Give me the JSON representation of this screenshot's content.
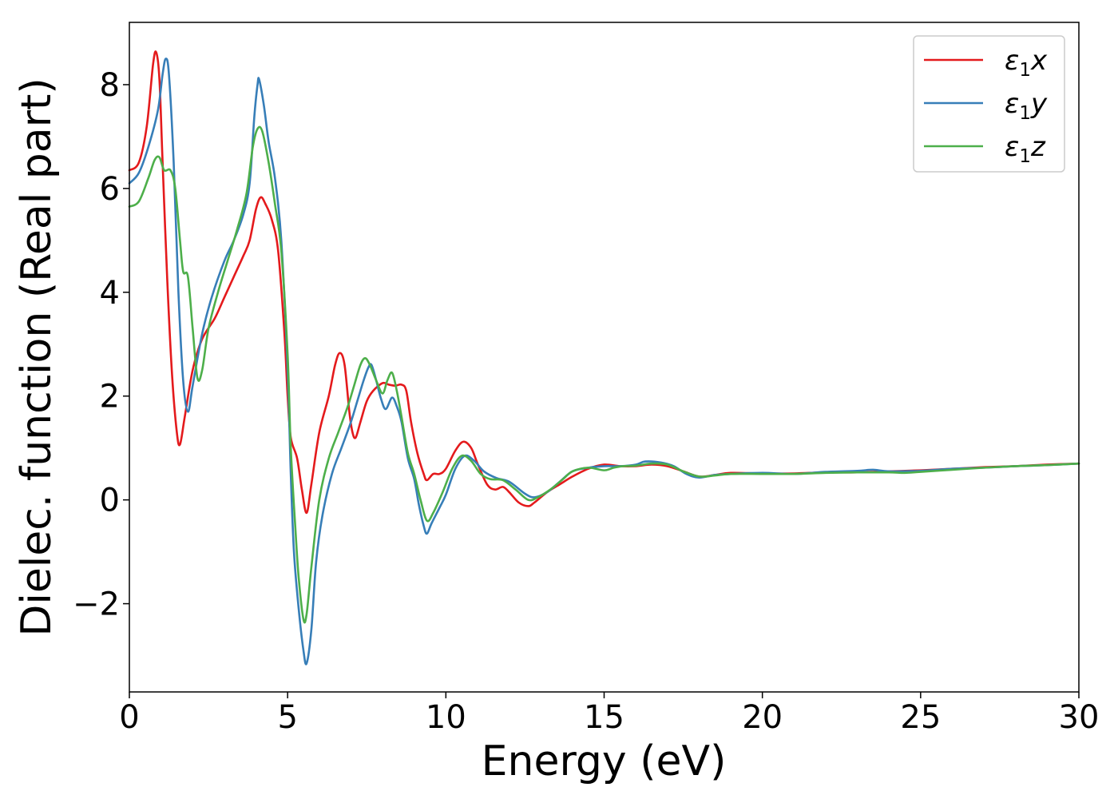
{
  "chart_data": {
    "type": "line",
    "title": "",
    "xlabel": "Energy (eV)",
    "ylabel": "Dielec. function (Real part)",
    "xlim": [
      0,
      30
    ],
    "ylim": [
      -3.7,
      9.2
    ],
    "xticks": [
      0,
      5,
      10,
      15,
      20,
      25,
      30
    ],
    "xtick_labels": [
      "0",
      "5",
      "10",
      "15",
      "20",
      "25",
      "30"
    ],
    "yticks": [
      -2,
      0,
      2,
      4,
      6,
      8
    ],
    "ytick_labels": [
      "−2",
      "0",
      "2",
      "4",
      "6",
      "8"
    ],
    "grid": false,
    "legend_position": "top-right",
    "series": [
      {
        "name": "ε₁x",
        "legend_base": "ε",
        "legend_sub": "1",
        "legend_suffix": "x",
        "color": "#e41a1c",
        "points": [
          [
            0,
            6.35
          ],
          [
            0.3,
            6.5
          ],
          [
            0.55,
            7.2
          ],
          [
            0.75,
            8.4
          ],
          [
            0.85,
            8.62
          ],
          [
            0.95,
            8.1
          ],
          [
            1.05,
            6.5
          ],
          [
            1.2,
            4.2
          ],
          [
            1.35,
            2.4
          ],
          [
            1.5,
            1.3
          ],
          [
            1.6,
            1.07
          ],
          [
            1.75,
            1.6
          ],
          [
            2.0,
            2.5
          ],
          [
            2.3,
            3.1
          ],
          [
            2.7,
            3.5
          ],
          [
            3.0,
            3.9
          ],
          [
            3.3,
            4.3
          ],
          [
            3.6,
            4.7
          ],
          [
            3.8,
            5.0
          ],
          [
            4.0,
            5.6
          ],
          [
            4.15,
            5.83
          ],
          [
            4.3,
            5.7
          ],
          [
            4.5,
            5.4
          ],
          [
            4.7,
            4.8
          ],
          [
            4.9,
            3.2
          ],
          [
            5.0,
            2.0
          ],
          [
            5.1,
            1.2
          ],
          [
            5.3,
            0.8
          ],
          [
            5.45,
            0.2
          ],
          [
            5.6,
            -0.25
          ],
          [
            5.75,
            0.3
          ],
          [
            6.0,
            1.3
          ],
          [
            6.3,
            2.0
          ],
          [
            6.5,
            2.6
          ],
          [
            6.65,
            2.83
          ],
          [
            6.8,
            2.6
          ],
          [
            6.95,
            1.7
          ],
          [
            7.05,
            1.3
          ],
          [
            7.15,
            1.2
          ],
          [
            7.3,
            1.5
          ],
          [
            7.5,
            1.9
          ],
          [
            7.7,
            2.1
          ],
          [
            8.0,
            2.25
          ],
          [
            8.2,
            2.22
          ],
          [
            8.4,
            2.2
          ],
          [
            8.6,
            2.22
          ],
          [
            8.75,
            2.1
          ],
          [
            8.9,
            1.5
          ],
          [
            9.1,
            0.9
          ],
          [
            9.3,
            0.5
          ],
          [
            9.4,
            0.38
          ],
          [
            9.6,
            0.5
          ],
          [
            9.8,
            0.5
          ],
          [
            10.0,
            0.6
          ],
          [
            10.3,
            0.95
          ],
          [
            10.55,
            1.12
          ],
          [
            10.8,
            1.0
          ],
          [
            11.0,
            0.7
          ],
          [
            11.3,
            0.3
          ],
          [
            11.55,
            0.2
          ],
          [
            11.8,
            0.25
          ],
          [
            12.0,
            0.15
          ],
          [
            12.3,
            -0.05
          ],
          [
            12.6,
            -0.12
          ],
          [
            12.8,
            -0.05
          ],
          [
            13.2,
            0.15
          ],
          [
            13.6,
            0.3
          ],
          [
            14.0,
            0.45
          ],
          [
            14.5,
            0.6
          ],
          [
            15.0,
            0.68
          ],
          [
            15.5,
            0.65
          ],
          [
            16.0,
            0.65
          ],
          [
            16.5,
            0.68
          ],
          [
            17.0,
            0.65
          ],
          [
            17.5,
            0.55
          ],
          [
            18.0,
            0.45
          ],
          [
            18.5,
            0.48
          ],
          [
            19.0,
            0.52
          ],
          [
            20.0,
            0.51
          ],
          [
            21.0,
            0.51
          ],
          [
            22.0,
            0.53
          ],
          [
            23.0,
            0.53
          ],
          [
            24.0,
            0.55
          ],
          [
            25.0,
            0.57
          ],
          [
            26.0,
            0.6
          ],
          [
            27.0,
            0.63
          ],
          [
            28.0,
            0.65
          ],
          [
            29.0,
            0.68
          ],
          [
            30.0,
            0.7
          ]
        ]
      },
      {
        "name": "ε₁y",
        "legend_base": "ε",
        "legend_sub": "1",
        "legend_suffix": "y",
        "color": "#377eb8",
        "points": [
          [
            0,
            6.1
          ],
          [
            0.3,
            6.3
          ],
          [
            0.6,
            6.8
          ],
          [
            0.9,
            7.5
          ],
          [
            1.05,
            8.2
          ],
          [
            1.15,
            8.5
          ],
          [
            1.25,
            8.2
          ],
          [
            1.4,
            6.5
          ],
          [
            1.55,
            4.0
          ],
          [
            1.7,
            2.3
          ],
          [
            1.85,
            1.7
          ],
          [
            2.0,
            2.2
          ],
          [
            2.3,
            3.2
          ],
          [
            2.6,
            3.9
          ],
          [
            3.0,
            4.6
          ],
          [
            3.3,
            5.0
          ],
          [
            3.6,
            5.5
          ],
          [
            3.8,
            6.1
          ],
          [
            3.95,
            7.4
          ],
          [
            4.05,
            8.0
          ],
          [
            4.1,
            8.1
          ],
          [
            4.25,
            7.6
          ],
          [
            4.4,
            6.9
          ],
          [
            4.6,
            6.2
          ],
          [
            4.8,
            5.0
          ],
          [
            5.0,
            2.5
          ],
          [
            5.1,
            0.5
          ],
          [
            5.2,
            -1.0
          ],
          [
            5.35,
            -2.1
          ],
          [
            5.5,
            -2.9
          ],
          [
            5.6,
            -3.15
          ],
          [
            5.75,
            -2.5
          ],
          [
            5.9,
            -1.2
          ],
          [
            6.1,
            -0.3
          ],
          [
            6.4,
            0.5
          ],
          [
            6.7,
            1.0
          ],
          [
            7.0,
            1.5
          ],
          [
            7.2,
            1.9
          ],
          [
            7.4,
            2.3
          ],
          [
            7.55,
            2.55
          ],
          [
            7.65,
            2.6
          ],
          [
            7.8,
            2.3
          ],
          [
            7.95,
            1.95
          ],
          [
            8.1,
            1.75
          ],
          [
            8.3,
            1.97
          ],
          [
            8.45,
            1.8
          ],
          [
            8.6,
            1.5
          ],
          [
            8.8,
            0.8
          ],
          [
            9.0,
            0.4
          ],
          [
            9.15,
            -0.1
          ],
          [
            9.3,
            -0.5
          ],
          [
            9.4,
            -0.65
          ],
          [
            9.55,
            -0.45
          ],
          [
            9.8,
            -0.15
          ],
          [
            10.0,
            0.1
          ],
          [
            10.3,
            0.6
          ],
          [
            10.6,
            0.85
          ],
          [
            10.9,
            0.75
          ],
          [
            11.2,
            0.55
          ],
          [
            11.6,
            0.42
          ],
          [
            12.0,
            0.35
          ],
          [
            12.5,
            0.12
          ],
          [
            12.8,
            0.05
          ],
          [
            13.2,
            0.15
          ],
          [
            13.6,
            0.35
          ],
          [
            14.0,
            0.55
          ],
          [
            14.5,
            0.62
          ],
          [
            15.0,
            0.65
          ],
          [
            15.5,
            0.65
          ],
          [
            16.0,
            0.68
          ],
          [
            16.3,
            0.74
          ],
          [
            16.8,
            0.72
          ],
          [
            17.2,
            0.65
          ],
          [
            17.6,
            0.5
          ],
          [
            18.0,
            0.43
          ],
          [
            18.5,
            0.48
          ],
          [
            19.0,
            0.5
          ],
          [
            20.0,
            0.52
          ],
          [
            21.0,
            0.5
          ],
          [
            22.0,
            0.54
          ],
          [
            23.0,
            0.56
          ],
          [
            23.5,
            0.58
          ],
          [
            24.0,
            0.55
          ],
          [
            25.0,
            0.56
          ],
          [
            26.0,
            0.6
          ],
          [
            27.0,
            0.62
          ],
          [
            28.0,
            0.65
          ],
          [
            29.0,
            0.67
          ],
          [
            30.0,
            0.7
          ]
        ]
      },
      {
        "name": "ε₁z",
        "legend_base": "ε",
        "legend_sub": "1",
        "legend_suffix": "z",
        "color": "#4daf4a",
        "points": [
          [
            0,
            5.65
          ],
          [
            0.3,
            5.75
          ],
          [
            0.6,
            6.2
          ],
          [
            0.8,
            6.55
          ],
          [
            0.95,
            6.6
          ],
          [
            1.1,
            6.35
          ],
          [
            1.3,
            6.35
          ],
          [
            1.45,
            6.0
          ],
          [
            1.6,
            5.0
          ],
          [
            1.7,
            4.4
          ],
          [
            1.85,
            4.3
          ],
          [
            2.0,
            3.3
          ],
          [
            2.15,
            2.35
          ],
          [
            2.3,
            2.5
          ],
          [
            2.5,
            3.3
          ],
          [
            2.8,
            4.0
          ],
          [
            3.1,
            4.6
          ],
          [
            3.4,
            5.2
          ],
          [
            3.7,
            5.9
          ],
          [
            3.9,
            6.8
          ],
          [
            4.05,
            7.15
          ],
          [
            4.2,
            7.1
          ],
          [
            4.4,
            6.5
          ],
          [
            4.6,
            5.7
          ],
          [
            4.8,
            4.8
          ],
          [
            5.0,
            2.8
          ],
          [
            5.1,
            1.0
          ],
          [
            5.25,
            -0.6
          ],
          [
            5.35,
            -1.5
          ],
          [
            5.5,
            -2.3
          ],
          [
            5.6,
            -2.2
          ],
          [
            5.75,
            -1.3
          ],
          [
            6.0,
            0.0
          ],
          [
            6.3,
            0.8
          ],
          [
            6.6,
            1.3
          ],
          [
            6.9,
            1.8
          ],
          [
            7.1,
            2.2
          ],
          [
            7.3,
            2.6
          ],
          [
            7.45,
            2.73
          ],
          [
            7.6,
            2.6
          ],
          [
            7.8,
            2.3
          ],
          [
            8.0,
            2.05
          ],
          [
            8.15,
            2.3
          ],
          [
            8.3,
            2.45
          ],
          [
            8.45,
            2.1
          ],
          [
            8.6,
            1.6
          ],
          [
            8.8,
            0.9
          ],
          [
            9.0,
            0.5
          ],
          [
            9.2,
            0.0
          ],
          [
            9.4,
            -0.4
          ],
          [
            9.6,
            -0.25
          ],
          [
            9.9,
            0.15
          ],
          [
            10.2,
            0.6
          ],
          [
            10.5,
            0.85
          ],
          [
            10.8,
            0.75
          ],
          [
            11.1,
            0.5
          ],
          [
            11.4,
            0.4
          ],
          [
            11.8,
            0.38
          ],
          [
            12.2,
            0.2
          ],
          [
            12.6,
            0.0
          ],
          [
            12.9,
            0.05
          ],
          [
            13.3,
            0.2
          ],
          [
            13.7,
            0.4
          ],
          [
            14.0,
            0.55
          ],
          [
            14.5,
            0.62
          ],
          [
            15.0,
            0.57
          ],
          [
            15.3,
            0.62
          ],
          [
            15.6,
            0.65
          ],
          [
            16.0,
            0.66
          ],
          [
            16.5,
            0.7
          ],
          [
            17.0,
            0.68
          ],
          [
            17.5,
            0.55
          ],
          [
            18.0,
            0.45
          ],
          [
            18.5,
            0.47
          ],
          [
            19.0,
            0.5
          ],
          [
            20.0,
            0.5
          ],
          [
            21.0,
            0.5
          ],
          [
            22.0,
            0.52
          ],
          [
            23.0,
            0.53
          ],
          [
            24.0,
            0.53
          ],
          [
            24.5,
            0.52
          ],
          [
            25.0,
            0.54
          ],
          [
            26.0,
            0.58
          ],
          [
            27.0,
            0.62
          ],
          [
            28.0,
            0.65
          ],
          [
            29.0,
            0.67
          ],
          [
            30.0,
            0.7
          ]
        ]
      }
    ]
  }
}
